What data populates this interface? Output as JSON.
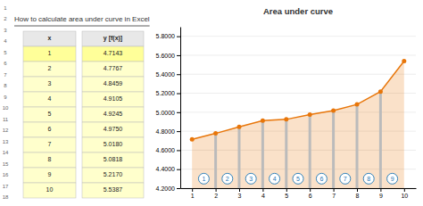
{
  "chart_data": {
    "type": "area",
    "title": "Area under curve",
    "subtitle": "How to calculate area under curve in Excel",
    "x": [
      1,
      2,
      3,
      4,
      5,
      6,
      7,
      8,
      9,
      10
    ],
    "values": [
      4.7143,
      4.7767,
      4.8459,
      4.9105,
      4.9245,
      4.975,
      5.018,
      5.0818,
      5.217,
      5.5387
    ],
    "color": "#E8760A",
    "marker": "circle",
    "xlim": [
      0.5,
      10.5
    ],
    "xticks": [
      1,
      2,
      3,
      4,
      5,
      6,
      7,
      8,
      9,
      10
    ],
    "ylim": [
      4.2,
      5.9
    ],
    "yticks": [
      {
        "value": 4.2,
        "label": "4.2000"
      },
      {
        "value": 4.4,
        "label": "4.4000"
      },
      {
        "value": 4.6,
        "label": "4.6000"
      },
      {
        "value": 4.8,
        "label": "4.8000"
      },
      {
        "value": 5.0,
        "label": "5.0000"
      },
      {
        "value": 5.2,
        "label": "5.2000"
      },
      {
        "value": 5.4,
        "label": "5.4000"
      },
      {
        "value": 5.6,
        "label": "5.6000"
      },
      {
        "value": 5.8,
        "label": "5.8000"
      }
    ],
    "grid": true,
    "annotations": [
      {
        "text": "1",
        "x": 1.5,
        "y": 4.3
      },
      {
        "text": "2",
        "x": 2.5,
        "y": 4.3
      },
      {
        "text": "3",
        "x": 3.5,
        "y": 4.3
      },
      {
        "text": "4",
        "x": 4.5,
        "y": 4.3
      },
      {
        "text": "5",
        "x": 5.5,
        "y": 4.3
      },
      {
        "text": "6",
        "x": 6.5,
        "y": 4.3
      },
      {
        "text": "7",
        "x": 7.5,
        "y": 4.3
      },
      {
        "text": "8",
        "x": 8.5,
        "y": 4.3
      },
      {
        "text": "9",
        "x": 9.5,
        "y": 4.3
      }
    ],
    "table": {
      "columns": [
        "x",
        "y [f(x)]"
      ],
      "rows": [
        [
          "1",
          "4.7143"
        ],
        [
          "2",
          "4.7767"
        ],
        [
          "3",
          "4.8459"
        ],
        [
          "4",
          "4.9105"
        ],
        [
          "5",
          "4.9245"
        ],
        [
          "6",
          "4.9750"
        ],
        [
          "7",
          "5.0180"
        ],
        [
          "8",
          "5.0818"
        ],
        [
          "9",
          "5.2170"
        ],
        [
          "10",
          "5.5387"
        ]
      ]
    },
    "row_numbers": [
      1,
      2,
      3,
      4,
      5,
      6,
      7,
      8,
      9,
      10,
      11,
      12,
      13,
      14,
      15,
      16,
      17,
      18
    ]
  }
}
